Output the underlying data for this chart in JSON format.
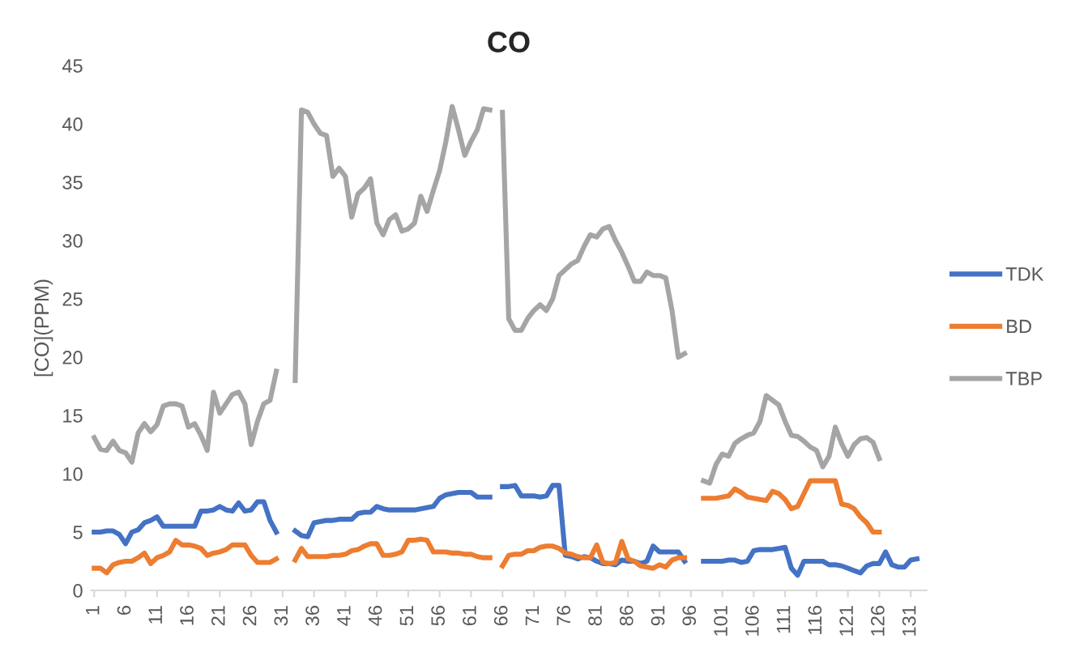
{
  "chart_data": {
    "type": "line",
    "title": "CO",
    "ylabel": "[CO](PPM)",
    "categories": [
      "1",
      null,
      null,
      null,
      null,
      "6",
      null,
      null,
      null,
      null,
      "11",
      null,
      null,
      null,
      null,
      "16",
      null,
      null,
      null,
      null,
      "21",
      null,
      null,
      null,
      null,
      "26",
      null,
      null,
      null,
      null,
      "31",
      null,
      null,
      null,
      null,
      "36",
      null,
      null,
      null,
      null,
      "41",
      null,
      null,
      null,
      null,
      "46",
      null,
      null,
      null,
      null,
      "51",
      null,
      null,
      null,
      null,
      "56",
      null,
      null,
      null,
      null,
      "61",
      null,
      null,
      null,
      null,
      "66",
      null,
      null,
      null,
      null,
      "71",
      null,
      null,
      null,
      null,
      "76",
      null,
      null,
      null,
      null,
      "81",
      null,
      null,
      null,
      null,
      "86",
      null,
      null,
      null,
      null,
      "91",
      null,
      null,
      null,
      null,
      "96",
      null,
      null,
      null,
      null,
      "101",
      null,
      null,
      null,
      null,
      "106",
      null,
      null,
      null,
      null,
      "111",
      null,
      null,
      null,
      null,
      "116",
      null,
      null,
      null,
      null,
      "121",
      null,
      null,
      null,
      null,
      "126",
      null,
      null,
      null,
      null,
      "131",
      null,
      null
    ],
    "series": [
      {
        "name": "TDK",
        "color": "#4472c4",
        "values": [
          5,
          5,
          5.1,
          5.1,
          4.8,
          4,
          5,
          5.2,
          5.8,
          6,
          6.3,
          5.5,
          5.5,
          5.5,
          5.5,
          5.5,
          5.5,
          6.8,
          6.8,
          6.9,
          7.2,
          6.9,
          6.8,
          7.5,
          6.8,
          6.9,
          7.6,
          7.6,
          6,
          5,
          null,
          null,
          5.1,
          4.7,
          4.6,
          5.8,
          5.9,
          6,
          6,
          6.1,
          6.1,
          6.1,
          6.6,
          6.7,
          6.7,
          7.2,
          7,
          6.9,
          6.9,
          6.9,
          6.9,
          6.9,
          7,
          7.1,
          7.2,
          7.9,
          8.2,
          8.3,
          8.4,
          8.4,
          8.4,
          8,
          8,
          8,
          null,
          8.9,
          8.9,
          9,
          8.1,
          8.1,
          8.1,
          8,
          8.1,
          9,
          9,
          3,
          2.9,
          2.7,
          2.9,
          2.8,
          2.5,
          2.3,
          2.3,
          2.2,
          2.6,
          2.5,
          2.5,
          2.3,
          2.5,
          3.8,
          3.3,
          3.3,
          3.3,
          3.3,
          2.5,
          null,
          null,
          2.5,
          2.5,
          2.5,
          2.5,
          2.6,
          2.6,
          2.4,
          2.5,
          3.4,
          3.5,
          3.5,
          3.5,
          3.6,
          3.7,
          1.9,
          1.3,
          2.5,
          2.5,
          2.5,
          2.5,
          2.2,
          2.2,
          2.1,
          1.9,
          1.7,
          1.5,
          2.1,
          2.3,
          2.3,
          3.3,
          2.2,
          2,
          2,
          2.6,
          2.7,
          null
        ]
      },
      {
        "name": "BD",
        "color": "#ed7d31",
        "values": [
          1.9,
          1.9,
          1.5,
          2.2,
          2.4,
          2.5,
          2.5,
          2.8,
          3.2,
          2.3,
          2.8,
          3,
          3.3,
          4.3,
          3.9,
          3.9,
          3.8,
          3.6,
          3,
          3.2,
          3.3,
          3.5,
          3.9,
          3.9,
          3.9,
          3,
          2.4,
          2.4,
          2.4,
          2.7,
          null,
          null,
          2.6,
          3.6,
          2.9,
          2.9,
          2.9,
          2.9,
          3,
          3,
          3.1,
          3.4,
          3.5,
          3.8,
          4,
          4,
          3,
          3,
          3.1,
          3.3,
          4.3,
          4.3,
          4.4,
          4.3,
          3.3,
          3.3,
          3.3,
          3.2,
          3.2,
          3.1,
          3.1,
          2.9,
          2.8,
          2.8,
          null,
          2.1,
          3,
          3.1,
          3.1,
          3.4,
          3.4,
          3.7,
          3.8,
          3.8,
          3.6,
          3.2,
          3.1,
          2.9,
          2.8,
          2.8,
          3.9,
          2.4,
          2.3,
          2.4,
          4.2,
          2.7,
          2.5,
          2.1,
          2,
          1.9,
          2.2,
          2,
          2.6,
          2.8,
          2.8,
          null,
          null,
          7.9,
          7.9,
          7.9,
          8,
          8.1,
          8.7,
          8.4,
          8,
          7.9,
          7.8,
          7.7,
          8.5,
          8.3,
          7.8,
          7,
          7.2,
          8.3,
          9.4,
          9.4,
          9.4,
          9.4,
          9.4,
          7.4,
          7.3,
          7,
          6.3,
          5.8,
          5,
          5,
          null,
          null,
          null,
          null,
          null,
          null,
          null
        ]
      },
      {
        "name": "TBP",
        "color": "#a5a5a5",
        "values": [
          13.1,
          12.1,
          12,
          12.8,
          12,
          11.8,
          11,
          13.5,
          14.3,
          13.6,
          14.2,
          15.8,
          16,
          16,
          15.8,
          14,
          14.3,
          13.3,
          12,
          17,
          15.2,
          16,
          16.8,
          17,
          16,
          12.5,
          14.5,
          16,
          16.3,
          18.8,
          null,
          null,
          18,
          41.2,
          41,
          40,
          39.2,
          39,
          35.5,
          36.2,
          35.5,
          32,
          34,
          34.5,
          35.3,
          31.5,
          30.5,
          31.8,
          32.2,
          30.8,
          31,
          31.5,
          33.8,
          32.5,
          34.3,
          36,
          38.5,
          41.5,
          39.5,
          37.3,
          38.5,
          39.5,
          41.3,
          41.2,
          null,
          41,
          23.3,
          22.3,
          22.3,
          23.3,
          24,
          24.5,
          24,
          25,
          27,
          27.5,
          28,
          28.3,
          29.5,
          30.5,
          30.3,
          31,
          31.2,
          30,
          29,
          27.8,
          26.5,
          26.5,
          27.3,
          27,
          27,
          26.8,
          24,
          20,
          20.3,
          null,
          null,
          9.4,
          9.2,
          10.8,
          11.7,
          11.5,
          12.6,
          13,
          13.3,
          13.5,
          14.5,
          16.7,
          16.3,
          15.9,
          14.5,
          13.3,
          13.2,
          12.8,
          12.3,
          12,
          10.6,
          11.5,
          14,
          12.6,
          11.5,
          12.5,
          13,
          13.1,
          12.7,
          11.3,
          null,
          null,
          null,
          null,
          null,
          null,
          null
        ]
      }
    ],
    "ylim": [
      0,
      45
    ],
    "yticks": [
      0,
      5,
      10,
      15,
      20,
      25,
      30,
      35,
      40,
      45
    ],
    "legend": "right",
    "grid": false,
    "marker": "none",
    "line_style": "solid"
  }
}
